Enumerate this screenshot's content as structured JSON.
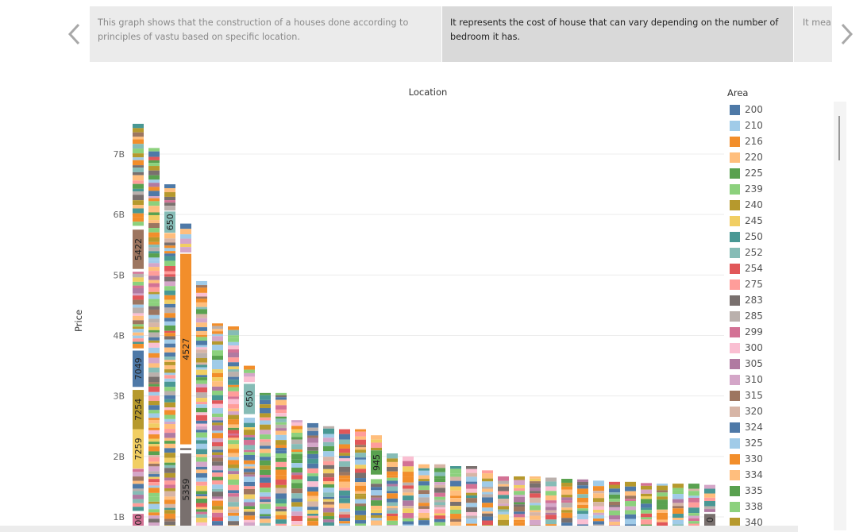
{
  "navigation": {
    "prev_icon": "chevron-left-icon",
    "next_icon": "chevron-right-icon"
  },
  "captions": [
    "This graph shows that the construction of a houses done according to principles of vastu based on specific location.",
    "It represents the cost of house that can vary depending on the number of bedroom it has.",
    "It mea close t"
  ],
  "chart_data": {
    "type": "bar",
    "stacked": true,
    "title": "Location",
    "xlabel": "",
    "ylabel": "Price",
    "y_ticks": [
      "1B",
      "2B",
      "3B",
      "4B",
      "5B",
      "6B",
      "7B"
    ],
    "ylim": [
      0.8,
      7.6
    ],
    "grid": true,
    "legend_title": "Area",
    "legend_position": "right",
    "legend": [
      {
        "label": "200",
        "color": "#4e79a7"
      },
      {
        "label": "210",
        "color": "#a0cbe8"
      },
      {
        "label": "216",
        "color": "#f28e2b"
      },
      {
        "label": "220",
        "color": "#ffbe7d"
      },
      {
        "label": "225",
        "color": "#59a14f"
      },
      {
        "label": "239",
        "color": "#8cd17d"
      },
      {
        "label": "240",
        "color": "#b6992d"
      },
      {
        "label": "245",
        "color": "#f1ce63"
      },
      {
        "label": "250",
        "color": "#499894"
      },
      {
        "label": "252",
        "color": "#86bcb6"
      },
      {
        "label": "254",
        "color": "#e15759"
      },
      {
        "label": "275",
        "color": "#ff9d9a"
      },
      {
        "label": "283",
        "color": "#79706e"
      },
      {
        "label": "285",
        "color": "#bab0ac"
      },
      {
        "label": "299",
        "color": "#d37295"
      },
      {
        "label": "300",
        "color": "#fabfd2"
      },
      {
        "label": "305",
        "color": "#b07aa1"
      },
      {
        "label": "310",
        "color": "#d4a6c8"
      },
      {
        "label": "315",
        "color": "#9d7660"
      },
      {
        "label": "320",
        "color": "#d7b5a6"
      },
      {
        "label": "324",
        "color": "#4e79a7"
      },
      {
        "label": "325",
        "color": "#a0cbe8"
      },
      {
        "label": "330",
        "color": "#f28e2b"
      },
      {
        "label": "334",
        "color": "#ffbe7d"
      },
      {
        "label": "335",
        "color": "#59a14f"
      },
      {
        "label": "338",
        "color": "#8cd17d"
      },
      {
        "label": "340",
        "color": "#b6992d"
      }
    ],
    "bar_totals": [
      7.5,
      7.1,
      6.5,
      5.85,
      4.9,
      4.2,
      4.15,
      3.5,
      3.05,
      3.05,
      2.6,
      2.55,
      2.5,
      2.45,
      2.45,
      2.35,
      2.05,
      2.0,
      1.87,
      1.87,
      1.84,
      1.84,
      1.77,
      1.67,
      1.67,
      1.67,
      1.65,
      1.63,
      1.62,
      1.6,
      1.58,
      1.58,
      1.56,
      1.55,
      1.55,
      1.55,
      1.53
    ],
    "segment_labels": [
      {
        "bar": 0,
        "text": "5422",
        "from": 5.1,
        "to": 5.75
      },
      {
        "bar": 0,
        "text": "7049",
        "from": 3.15,
        "to": 3.75
      },
      {
        "bar": 0,
        "text": "7254",
        "from": 2.45,
        "to": 3.1
      },
      {
        "bar": 0,
        "text": "7259",
        "from": 1.8,
        "to": 2.45
      },
      {
        "bar": 0,
        "text": "00",
        "from": 0.8,
        "to": 1.05
      },
      {
        "bar": 2,
        "text": "650",
        "from": 5.7,
        "to": 6.05
      },
      {
        "bar": 3,
        "text": "4527",
        "from": 2.2,
        "to": 5.35
      },
      {
        "bar": 3,
        "text": "5359",
        "from": 0.8,
        "to": 2.05
      },
      {
        "bar": 7,
        "text": "650",
        "from": 2.7,
        "to": 3.2
      },
      {
        "bar": 15,
        "text": "945",
        "from": 1.7,
        "to": 2.1
      },
      {
        "bar": 36,
        "text": "0",
        "from": 0.8,
        "to": 1.05
      }
    ]
  }
}
